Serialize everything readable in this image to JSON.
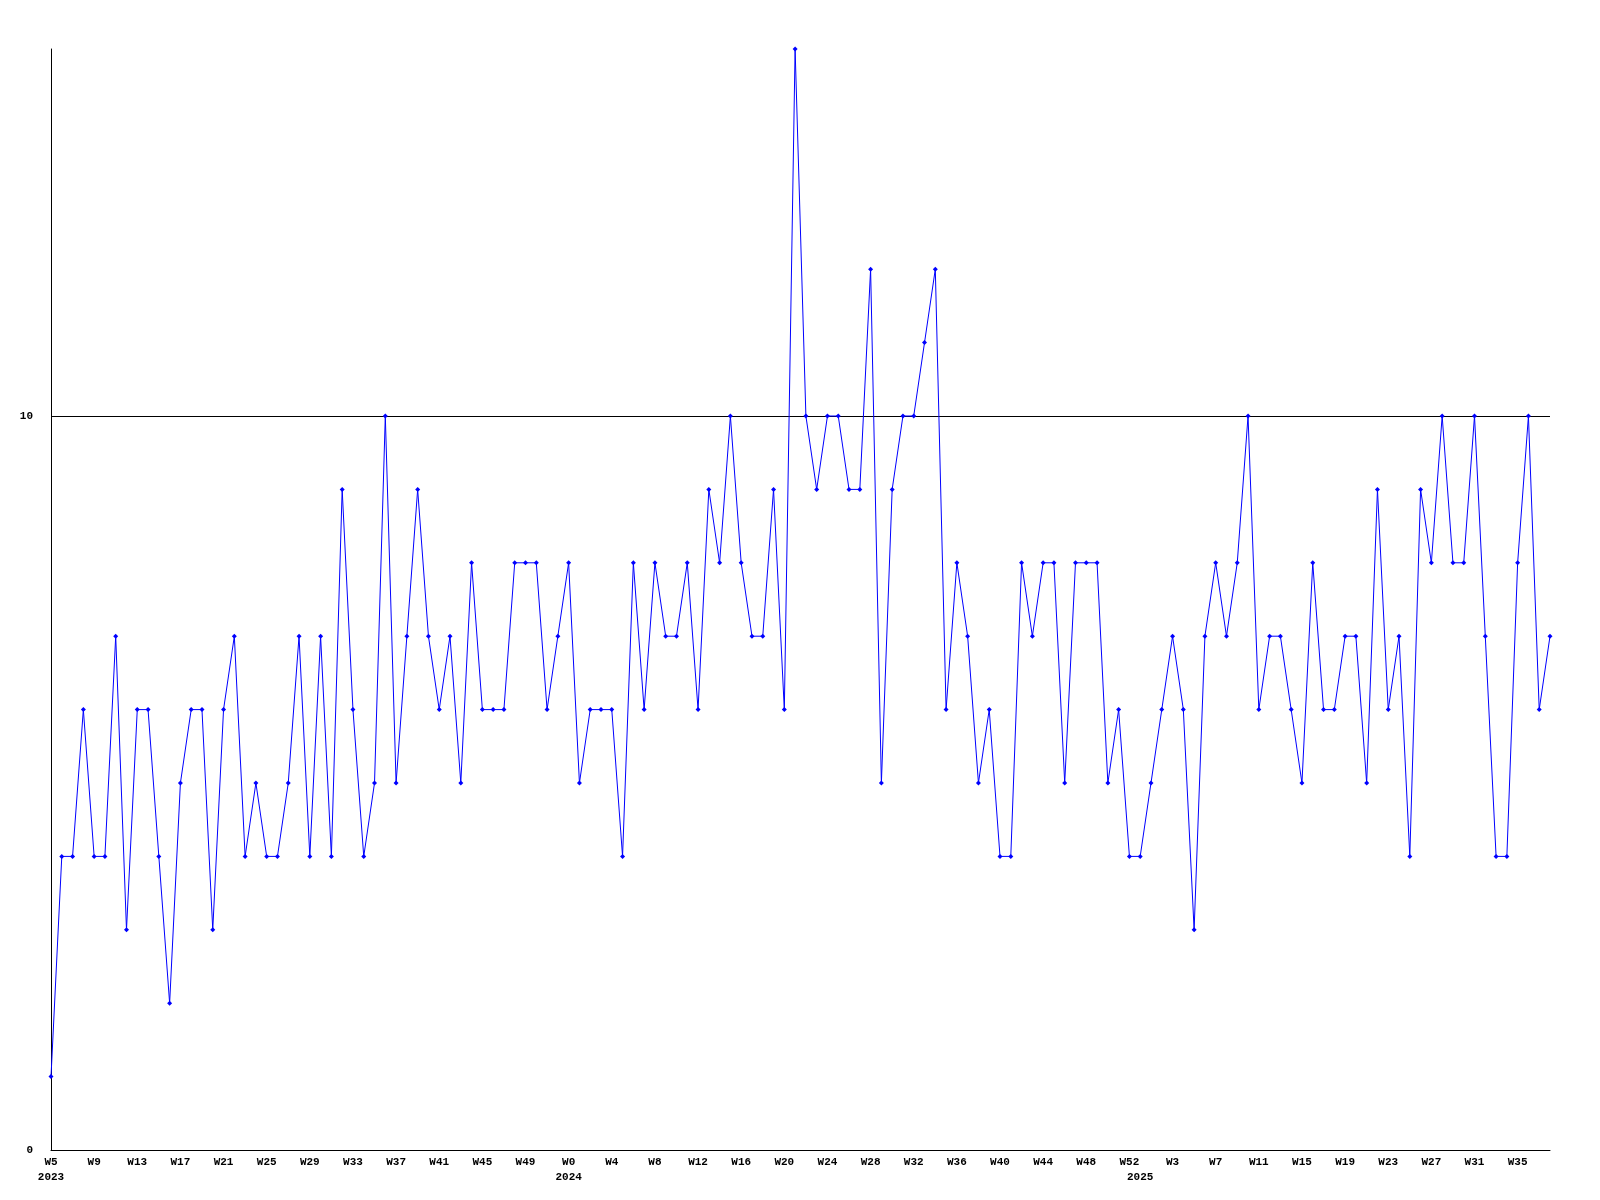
{
  "chart_data": {
    "type": "line",
    "categories": [
      "W5\n2023",
      null,
      null,
      null,
      "W9",
      null,
      null,
      null,
      "W13",
      null,
      null,
      null,
      "W17",
      null,
      null,
      null,
      "W21",
      null,
      null,
      null,
      "W25",
      null,
      null,
      null,
      "W29",
      null,
      null,
      null,
      "W33",
      null,
      null,
      null,
      "W37",
      null,
      null,
      null,
      "W41",
      null,
      null,
      null,
      "W45",
      null,
      null,
      null,
      "W49",
      null,
      null,
      null,
      "W0\n2024",
      null,
      null,
      null,
      "W4",
      null,
      null,
      null,
      "W8",
      null,
      null,
      null,
      "W12",
      null,
      null,
      null,
      "W16",
      null,
      null,
      null,
      "W20",
      null,
      null,
      null,
      "W24",
      null,
      null,
      null,
      "W28",
      null,
      null,
      null,
      "W32",
      null,
      null,
      null,
      "W36",
      null,
      null,
      null,
      "W40",
      null,
      null,
      null,
      "W44",
      null,
      null,
      null,
      "W48",
      null,
      null,
      null,
      "W52",
      "\n2025",
      null,
      null,
      "W3",
      null,
      null,
      null,
      "W7",
      null,
      null,
      null,
      "W11",
      null,
      null,
      null,
      "W15",
      null,
      null,
      null,
      "W19",
      null,
      null,
      null,
      "W23",
      null,
      null,
      null,
      "W27",
      null,
      null,
      null,
      "W31",
      null,
      null,
      null,
      "W35",
      null,
      null,
      null
    ],
    "series": [
      {
        "color": "#0000ff",
        "values": [
          1,
          4,
          4,
          6,
          4,
          4,
          7,
          3,
          6,
          6,
          4,
          2,
          5,
          6,
          6,
          3,
          6,
          7,
          4,
          5,
          4,
          4,
          5,
          7,
          4,
          7,
          4,
          9,
          6,
          4,
          5,
          10,
          5,
          7,
          9,
          7,
          6,
          7,
          5,
          8,
          6,
          6,
          6,
          8,
          8,
          8,
          6,
          7,
          8,
          5,
          6,
          6,
          6,
          4,
          8,
          6,
          8,
          7,
          7,
          8,
          6,
          9,
          8,
          10,
          8,
          7,
          7,
          9,
          6,
          15,
          10,
          9,
          10,
          10,
          9,
          9,
          12,
          5,
          9,
          10,
          10,
          11,
          12,
          6,
          8,
          7,
          5,
          6,
          4,
          4,
          8,
          7,
          8,
          8,
          5,
          8,
          8,
          8,
          5,
          6,
          4,
          4,
          5,
          6,
          7,
          6,
          3,
          7,
          8,
          7,
          8,
          10,
          6,
          7,
          7,
          6,
          5,
          8,
          6,
          6,
          7,
          7,
          5,
          9,
          6,
          7,
          4,
          9,
          8,
          10,
          8,
          8,
          10,
          7,
          4,
          4,
          8,
          10,
          6,
          7
        ]
      }
    ],
    "ylim": [
      0,
      15
    ],
    "yticks": [
      0,
      10
    ],
    "grid": "y",
    "marker": "diamond",
    "line_style": "solid"
  }
}
